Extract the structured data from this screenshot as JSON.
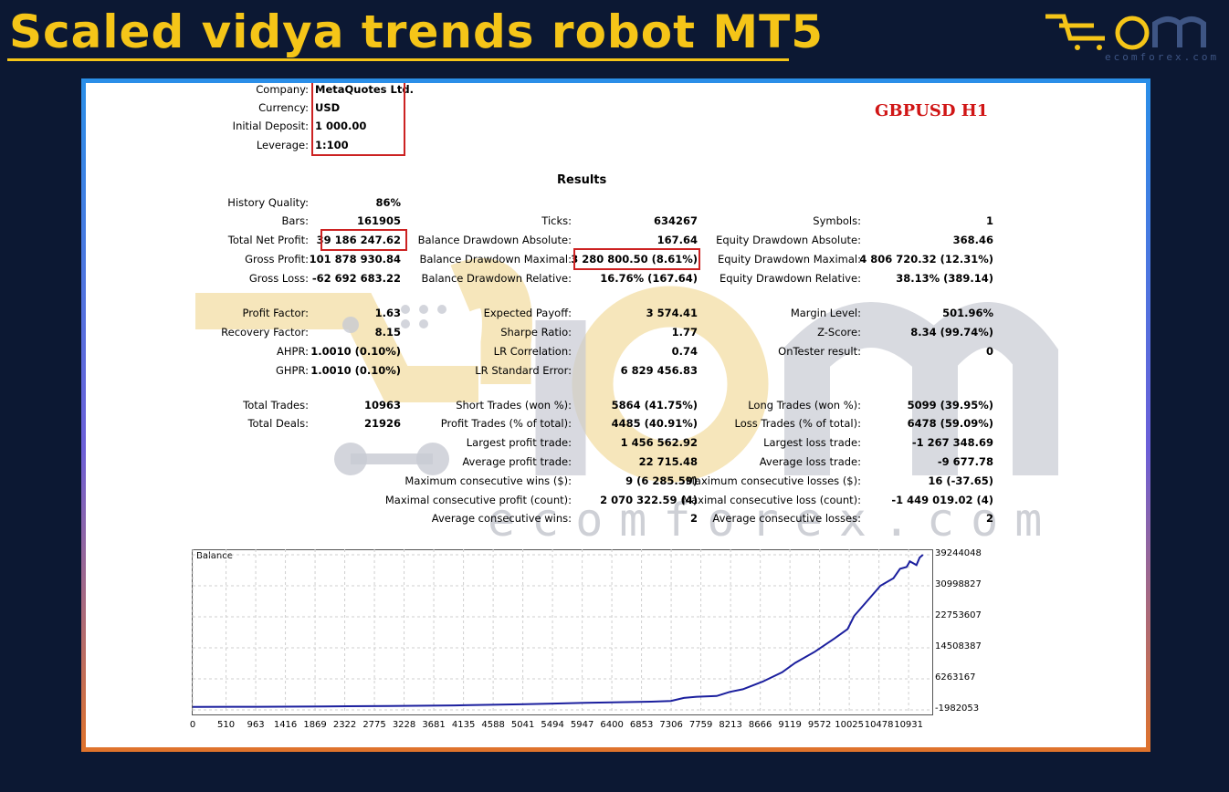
{
  "page": {
    "title": "Scaled vidya trends robot MT5",
    "logo_sub": "ecomforex.com",
    "colors": {
      "background": "#0c1833",
      "title": "#f5c518",
      "symbol": "#d01515",
      "line": "#1b1f9e",
      "box": "#cc2222"
    }
  },
  "account": [
    {
      "label": "Company:",
      "value": "MetaQuotes Ltd."
    },
    {
      "label": "Currency:",
      "value": "USD"
    },
    {
      "label": "Initial Deposit:",
      "value": "1 000.00"
    },
    {
      "label": "Leverage:",
      "value": "1:100"
    }
  ],
  "symbol": "GBPUSD H1",
  "results_title": "Results",
  "col1": [
    {
      "label": "History Quality:",
      "value": "86%"
    },
    {
      "label": "Bars:",
      "value": "161905"
    },
    {
      "label": "Total Net Profit:",
      "value": "39 186 247.62"
    },
    {
      "label": "Gross Profit:",
      "value": "101 878 930.84"
    },
    {
      "label": "Gross Loss:",
      "value": "-62 692 683.22"
    },
    {
      "label": "Profit Factor:",
      "value": "1.63"
    },
    {
      "label": "Recovery Factor:",
      "value": "8.15"
    },
    {
      "label": "AHPR:",
      "value": "1.0010 (0.10%)"
    },
    {
      "label": "GHPR:",
      "value": "1.0010 (0.10%)"
    },
    {
      "label": "Total Trades:",
      "value": "10963"
    },
    {
      "label": "Total Deals:",
      "value": "21926"
    }
  ],
  "col2": [
    {
      "label": "Ticks:",
      "value": "634267"
    },
    {
      "label": "Balance Drawdown Absolute:",
      "value": "167.64"
    },
    {
      "label": "Balance Drawdown Maximal:",
      "value": "3 280 800.50 (8.61%)"
    },
    {
      "label": "Balance Drawdown Relative:",
      "value": "16.76% (167.64)"
    },
    {
      "label": "Expected Payoff:",
      "value": "3 574.41"
    },
    {
      "label": "Sharpe Ratio:",
      "value": "1.77"
    },
    {
      "label": "LR Correlation:",
      "value": "0.74"
    },
    {
      "label": "LR Standard Error:",
      "value": "6 829 456.83"
    },
    {
      "label": "Short Trades (won %):",
      "value": "5864 (41.75%)"
    },
    {
      "label": "Profit Trades (% of total):",
      "value": "4485 (40.91%)"
    },
    {
      "label": "Largest profit trade:",
      "value": "1 456 562.92"
    },
    {
      "label": "Average profit trade:",
      "value": "22 715.48"
    },
    {
      "label": "Maximum consecutive wins ($):",
      "value": "9 (6 285.59)"
    },
    {
      "label": "Maximal consecutive profit (count):",
      "value": "2 070 322.59 (4)"
    },
    {
      "label": "Average consecutive wins:",
      "value": "2"
    }
  ],
  "col3": [
    {
      "label": "Symbols:",
      "value": "1"
    },
    {
      "label": "Equity Drawdown Absolute:",
      "value": "368.46"
    },
    {
      "label": "Equity Drawdown Maximal:",
      "value": "4 806 720.32 (12.31%)"
    },
    {
      "label": "Equity Drawdown Relative:",
      "value": "38.13% (389.14)"
    },
    {
      "label": "Margin Level:",
      "value": "501.96%"
    },
    {
      "label": "Z-Score:",
      "value": "8.34 (99.74%)"
    },
    {
      "label": "OnTester result:",
      "value": "0"
    },
    {
      "label": "Long Trades (won %):",
      "value": "5099 (39.95%)"
    },
    {
      "label": "Loss Trades (% of total):",
      "value": "6478 (59.09%)"
    },
    {
      "label": "Largest loss trade:",
      "value": "-1 267 348.69"
    },
    {
      "label": "Average loss trade:",
      "value": "-9 677.78"
    },
    {
      "label": "Maximum consecutive losses ($):",
      "value": "16 (-37.65)"
    },
    {
      "label": "Maximal consecutive loss (count):",
      "value": "-1 449 019.02 (4)"
    },
    {
      "label": "Average consecutive losses:",
      "value": "2"
    }
  ],
  "chart_data": {
    "type": "line",
    "title": "Balance",
    "yticks": [
      "39244048",
      "30998827",
      "22753607",
      "14508387",
      "6263167",
      "-1982053"
    ],
    "xticks": [
      "0",
      "510",
      "963",
      "1416",
      "1869",
      "2322",
      "2775",
      "3228",
      "3681",
      "4135",
      "4588",
      "5041",
      "5494",
      "5947",
      "6400",
      "6853",
      "7306",
      "7759",
      "8213",
      "8666",
      "9119",
      "9572",
      "10025",
      "10478",
      "10931"
    ],
    "xlim": [
      0,
      11250
    ],
    "ylim": [
      -1982053,
      39244048
    ],
    "series": [
      {
        "x": [
          0,
          1000,
          2000,
          3000,
          4000,
          5000,
          5500,
          6000,
          6500,
          7000,
          7300,
          7500,
          7700,
          8000,
          8200,
          8400,
          8700,
          9000,
          9200,
          9500,
          9800,
          10000,
          10100,
          10300,
          10500,
          10700,
          10800,
          10900,
          10950,
          11000,
          11050,
          11100,
          11150
        ],
        "y": [
          -1200000,
          -1150000,
          -1050000,
          -950000,
          -800000,
          -500000,
          -300000,
          -100000,
          50000,
          200000,
          400000,
          1200000,
          1500000,
          1700000,
          2800000,
          3500000,
          5500000,
          8000000,
          10500000,
          13500000,
          17000000,
          19500000,
          23000000,
          27000000,
          31000000,
          33000000,
          35500000,
          36000000,
          37500000,
          37000000,
          36500000,
          38500000,
          39244048
        ]
      }
    ]
  }
}
